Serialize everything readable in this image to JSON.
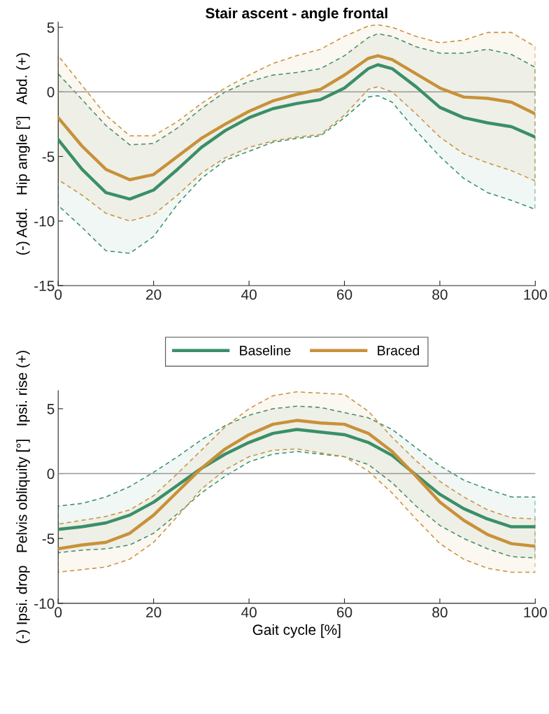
{
  "chart_data": [
    {
      "type": "line",
      "title": "Stair ascent - angle frontal",
      "ylabel": "(-) Add.   Hip angle [°]   Abd. (+)",
      "x": [
        0,
        5,
        10,
        15,
        20,
        25,
        30,
        35,
        40,
        45,
        50,
        55,
        60,
        65,
        67,
        70,
        75,
        80,
        85,
        90,
        95,
        100
      ],
      "xlim": [
        0,
        100
      ],
      "xticks": [
        0,
        20,
        40,
        60,
        80,
        100
      ],
      "ylim": [
        -15,
        5.4
      ],
      "yticks": [
        -15,
        -10,
        -5,
        0,
        5
      ],
      "grid": false,
      "legend": "bottom",
      "line_style": "solid",
      "marker": "none",
      "ref_lines": [
        {
          "axis": "y",
          "value": 0,
          "color": "#999999"
        }
      ],
      "series": [
        {
          "name": "Baseline",
          "color": "#3a8f68",
          "values": [
            -3.7,
            -6,
            -7.8,
            -8.3,
            -7.6,
            -6,
            -4.3,
            -3,
            -2,
            -1.3,
            -0.9,
            -0.6,
            0.3,
            1.8,
            2.1,
            1.8,
            0.4,
            -1.2,
            -2,
            -2.4,
            -2.7,
            -3.5
          ],
          "upper": [
            1.4,
            -0.6,
            -2.6,
            -4.1,
            -4,
            -2.8,
            -1.3,
            0,
            0.8,
            1.3,
            1.5,
            1.8,
            2.8,
            4.2,
            4.5,
            4.3,
            3.5,
            3,
            3,
            3.3,
            2.9,
            1.9
          ],
          "lower": [
            -8.8,
            -10.5,
            -12.3,
            -12.5,
            -11.2,
            -8.7,
            -6.7,
            -5.3,
            -4.6,
            -3.9,
            -3.6,
            -3.4,
            -2,
            -0.4,
            -0.3,
            -0.8,
            -3,
            -5,
            -6.7,
            -7.8,
            -8.4,
            -9.1
          ]
        },
        {
          "name": "Braced",
          "color": "#c8913a",
          "values": [
            -2,
            -4.2,
            -6,
            -6.8,
            -6.4,
            -5,
            -3.6,
            -2.5,
            -1.5,
            -0.7,
            -0.2,
            0.2,
            1.3,
            2.6,
            2.8,
            2.5,
            1.4,
            0.3,
            -0.4,
            -0.5,
            -0.8,
            -1.7
          ],
          "upper": [
            2.8,
            0.5,
            -1.8,
            -3.4,
            -3.4,
            -2.3,
            -0.9,
            0.3,
            1.3,
            2.2,
            2.8,
            3.3,
            4.3,
            5.1,
            5.2,
            5,
            4.3,
            3.8,
            4,
            4.6,
            4.6,
            3.5
          ],
          "lower": [
            -6.8,
            -8,
            -9.4,
            -10,
            -9.5,
            -8,
            -6.3,
            -5.1,
            -4.3,
            -3.8,
            -3.5,
            -3.3,
            -1.8,
            0.2,
            0.4,
            0,
            -1.7,
            -3.5,
            -4.8,
            -5.5,
            -6.1,
            -6.9
          ]
        }
      ]
    },
    {
      "type": "line",
      "xlabel": "Gait cycle [%]",
      "ylabel": "(-) Ipsi. drop   Pelvis obliquity [°]   Ipsi. rise (+)",
      "x": [
        0,
        5,
        10,
        15,
        20,
        25,
        30,
        35,
        40,
        45,
        50,
        55,
        60,
        65,
        70,
        75,
        80,
        85,
        90,
        95,
        100
      ],
      "xlim": [
        0,
        100
      ],
      "xticks": [
        0,
        20,
        40,
        60,
        80,
        100
      ],
      "ylim": [
        -10,
        6.4
      ],
      "yticks": [
        -10,
        -5,
        0,
        5
      ],
      "grid": false,
      "line_style": "solid",
      "marker": "none",
      "ref_lines": [
        {
          "axis": "y",
          "value": 0,
          "color": "#999999"
        }
      ],
      "series": [
        {
          "color": "#3a8f68",
          "values": [
            -4.3,
            -4.1,
            -3.8,
            -3.2,
            -2.2,
            -0.9,
            0.4,
            1.5,
            2.4,
            3.1,
            3.4,
            3.2,
            3,
            2.4,
            1.4,
            -0.1,
            -1.6,
            -2.7,
            -3.5,
            -4.1,
            -4.1
          ],
          "upper": [
            -2.5,
            -2.3,
            -1.8,
            -1,
            0.1,
            1.3,
            2.6,
            3.7,
            4.5,
            5,
            5.2,
            5.1,
            4.7,
            4.3,
            3.4,
            2,
            0.6,
            -0.5,
            -1.2,
            -1.8,
            -1.8
          ],
          "lower": [
            -6.1,
            -5.9,
            -5.8,
            -5.5,
            -4.6,
            -3.1,
            -1.5,
            -0.2,
            0.9,
            1.5,
            1.7,
            1.5,
            1.3,
            0.7,
            -0.7,
            -2.5,
            -4,
            -5,
            -5.8,
            -6.4,
            -6.5
          ]
        },
        {
          "color": "#c8913a",
          "values": [
            -5.8,
            -5.5,
            -5.3,
            -4.6,
            -3.2,
            -1.4,
            0.4,
            1.9,
            3,
            3.8,
            4.1,
            3.9,
            3.8,
            3.1,
            1.7,
            -0.2,
            -2.2,
            -3.6,
            -4.7,
            -5.4,
            -5.6
          ],
          "upper": [
            -3.9,
            -3.6,
            -3.3,
            -2.8,
            -1.7,
            0,
            1.8,
            3.6,
            5,
            6,
            6.3,
            6.2,
            6.1,
            4.8,
            2.8,
            1,
            -0.6,
            -1.8,
            -2.8,
            -3.4,
            -3.5
          ],
          "lower": [
            -7.6,
            -7.4,
            -7.2,
            -6.6,
            -5.3,
            -3.3,
            -1.2,
            0.3,
            1.3,
            1.8,
            1.9,
            1.6,
            1.3,
            0.2,
            -1.5,
            -3.5,
            -5.4,
            -6.6,
            -7.3,
            -7.6,
            -7.6
          ]
        }
      ]
    }
  ]
}
